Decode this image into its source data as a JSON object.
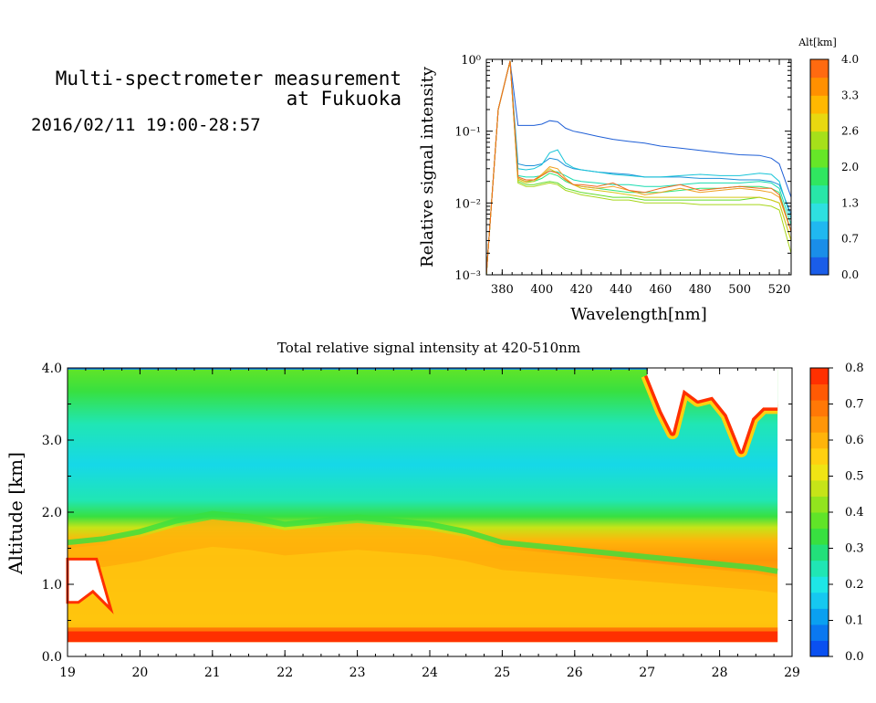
{
  "header": {
    "title_line1": "Multi-spectrometer measurement",
    "title_line2": "at Fukuoka",
    "datetime": "2016/02/11 19:00-28:57"
  },
  "chart_data": [
    {
      "type": "line",
      "title": "",
      "xlabel": "Wavelength[nm]",
      "ylabel": "Relative signal intensity",
      "yscale": "log",
      "xlim": [
        372,
        526
      ],
      "ylim": [
        0.001,
        1
      ],
      "x_ticks": [
        380,
        400,
        420,
        440,
        460,
        480,
        500,
        520
      ],
      "y_ticks": [
        "10⁻³",
        "10⁻²",
        "10⁻¹",
        "10⁰"
      ],
      "x": [
        372,
        378,
        384,
        388,
        392,
        396,
        400,
        404,
        408,
        412,
        416,
        420,
        428,
        436,
        444,
        452,
        460,
        470,
        480,
        490,
        500,
        510,
        516,
        520,
        526
      ],
      "series": [
        {
          "color": "#1f5fd6",
          "values": [
            0.001,
            0.2,
            0.95,
            0.12,
            0.12,
            0.12,
            0.125,
            0.14,
            0.135,
            0.11,
            0.1,
            0.095,
            0.085,
            0.077,
            0.072,
            0.068,
            0.062,
            0.058,
            0.054,
            0.05,
            0.047,
            0.046,
            0.042,
            0.035,
            0.012
          ]
        },
        {
          "color": "#1e90d8",
          "values": [
            0.001,
            0.2,
            0.95,
            0.035,
            0.033,
            0.033,
            0.035,
            0.042,
            0.04,
            0.033,
            0.03,
            0.029,
            0.027,
            0.026,
            0.025,
            0.023,
            0.023,
            0.023,
            0.022,
            0.022,
            0.021,
            0.021,
            0.02,
            0.018,
            0.007
          ]
        },
        {
          "color": "#18c4d8",
          "values": [
            0.001,
            0.2,
            0.95,
            0.03,
            0.029,
            0.03,
            0.034,
            0.05,
            0.055,
            0.036,
            0.031,
            0.029,
            0.027,
            0.025,
            0.024,
            0.023,
            0.023,
            0.024,
            0.025,
            0.024,
            0.024,
            0.026,
            0.025,
            0.02,
            0.006
          ]
        },
        {
          "color": "#19dcb0",
          "values": [
            0.001,
            0.2,
            0.95,
            0.024,
            0.023,
            0.023,
            0.024,
            0.028,
            0.027,
            0.024,
            0.021,
            0.02,
            0.019,
            0.018,
            0.018,
            0.017,
            0.017,
            0.018,
            0.019,
            0.019,
            0.019,
            0.02,
            0.019,
            0.016,
            0.005
          ]
        },
        {
          "color": "#2ee676",
          "values": [
            0.001,
            0.2,
            0.95,
            0.022,
            0.02,
            0.02,
            0.022,
            0.026,
            0.024,
            0.02,
            0.018,
            0.017,
            0.016,
            0.015,
            0.014,
            0.014,
            0.014,
            0.015,
            0.016,
            0.016,
            0.017,
            0.017,
            0.016,
            0.014,
            0.004
          ]
        },
        {
          "color": "#62dc2a",
          "values": [
            0.001,
            0.2,
            0.95,
            0.02,
            0.018,
            0.018,
            0.019,
            0.02,
            0.019,
            0.016,
            0.015,
            0.014,
            0.013,
            0.012,
            0.012,
            0.011,
            0.011,
            0.011,
            0.011,
            0.011,
            0.011,
            0.012,
            0.011,
            0.01,
            0.003
          ]
        },
        {
          "color": "#a8d61a",
          "values": [
            0.001,
            0.2,
            0.95,
            0.019,
            0.017,
            0.017,
            0.018,
            0.019,
            0.018,
            0.015,
            0.014,
            0.013,
            0.012,
            0.011,
            0.011,
            0.01,
            0.01,
            0.01,
            0.0095,
            0.0095,
            0.0095,
            0.0095,
            0.009,
            0.008,
            0.002
          ]
        },
        {
          "color": "#d8c818",
          "values": [
            0.001,
            0.2,
            0.95,
            0.021,
            0.019,
            0.02,
            0.024,
            0.03,
            0.026,
            0.021,
            0.018,
            0.016,
            0.015,
            0.014,
            0.013,
            0.012,
            0.012,
            0.012,
            0.012,
            0.012,
            0.012,
            0.012,
            0.011,
            0.01,
            0.003
          ]
        },
        {
          "color": "#f0a020",
          "values": [
            0.001,
            0.2,
            0.95,
            0.022,
            0.02,
            0.021,
            0.025,
            0.032,
            0.03,
            0.022,
            0.018,
            0.017,
            0.016,
            0.017,
            0.015,
            0.013,
            0.014,
            0.016,
            0.014,
            0.015,
            0.016,
            0.015,
            0.014,
            0.012,
            0.004
          ]
        },
        {
          "color": "#f06a20",
          "values": [
            0.001,
            0.2,
            0.95,
            0.023,
            0.021,
            0.021,
            0.024,
            0.028,
            0.026,
            0.021,
            0.018,
            0.018,
            0.017,
            0.019,
            0.015,
            0.014,
            0.016,
            0.018,
            0.015,
            0.016,
            0.017,
            0.016,
            0.016,
            0.013,
            0.004
          ]
        }
      ],
      "colorbar": {
        "title": "Alt[km]",
        "tick_labels": [
          "0.0",
          "0.7",
          "1.3",
          "2.0",
          "2.6",
          "3.3",
          "4.0"
        ],
        "colors": [
          "#1a5de8",
          "#1a8ee8",
          "#20b8f0",
          "#2ee0e0",
          "#28e6a8",
          "#30e660",
          "#66e628",
          "#a6e01a",
          "#e8d810",
          "#ffb800",
          "#ff9000",
          "#ff6a10"
        ]
      }
    },
    {
      "type": "heatmap",
      "title": "Total relative signal intensity at 420-510nm",
      "xlabel": "",
      "ylabel": "Altitude [km]",
      "xlim": [
        19,
        29
      ],
      "ylim": [
        0,
        4
      ],
      "x_ticks": [
        "19",
        "20",
        "21",
        "22",
        "23",
        "24",
        "25",
        "26",
        "27",
        "28",
        "29"
      ],
      "y_ticks": [
        "0.0",
        "1.0",
        "2.0",
        "3.0",
        "4.0"
      ],
      "boundary_layer_top_km": [
        [
          19.0,
          1.5
        ],
        [
          19.5,
          1.55
        ],
        [
          20.0,
          1.65
        ],
        [
          20.5,
          1.8
        ],
        [
          21.0,
          1.9
        ],
        [
          21.5,
          1.85
        ],
        [
          22.0,
          1.75
        ],
        [
          22.5,
          1.8
        ],
        [
          23.0,
          1.85
        ],
        [
          23.5,
          1.8
        ],
        [
          24.0,
          1.75
        ],
        [
          24.5,
          1.65
        ],
        [
          25.0,
          1.5
        ],
        [
          25.5,
          1.45
        ],
        [
          26.0,
          1.4
        ],
        [
          26.5,
          1.35
        ],
        [
          27.0,
          1.3
        ],
        [
          27.5,
          1.25
        ],
        [
          28.0,
          1.2
        ],
        [
          28.5,
          1.15
        ],
        [
          28.8,
          1.1
        ]
      ],
      "upper_cloud_base_km": [
        [
          27.0,
          3.9
        ],
        [
          27.2,
          3.4
        ],
        [
          27.35,
          3.1
        ],
        [
          27.5,
          3.7
        ],
        [
          27.7,
          3.55
        ],
        [
          27.9,
          3.6
        ],
        [
          28.1,
          3.35
        ],
        [
          28.3,
          2.85
        ],
        [
          28.45,
          3.3
        ],
        [
          28.6,
          3.45
        ],
        [
          28.8,
          3.45
        ]
      ],
      "colorbar": {
        "title": "",
        "tick_labels": [
          "0.0",
          "0.1",
          "0.2",
          "0.3",
          "0.4",
          "0.5",
          "0.6",
          "0.7",
          "0.8"
        ],
        "colors": [
          "#0a50f0",
          "#0a78f0",
          "#0aa0f0",
          "#16c8f0",
          "#1ee6e6",
          "#20e6b4",
          "#22e07a",
          "#38e040",
          "#60e428",
          "#92e41e",
          "#c6e418",
          "#f0e414",
          "#ffd010",
          "#ffb40a",
          "#ff9608",
          "#ff7806",
          "#ff5a04",
          "#ff3000"
        ]
      }
    }
  ]
}
